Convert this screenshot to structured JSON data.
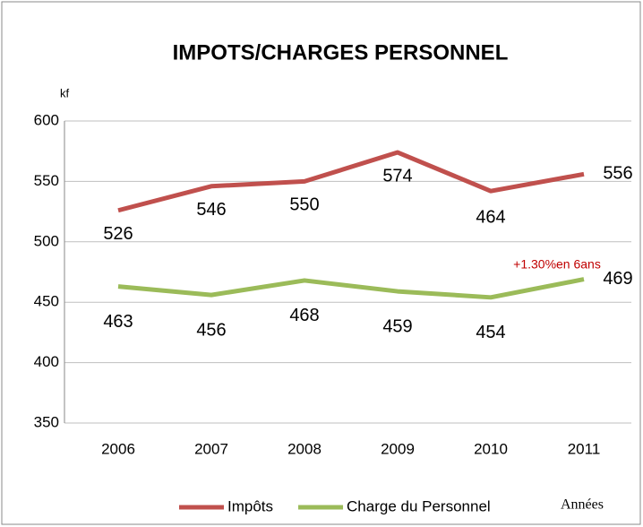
{
  "chart_data": {
    "type": "line",
    "title": "IMPOTS/CHARGES PERSONNEL",
    "y_label": "kf",
    "x_label": "Années",
    "categories": [
      "2006",
      "2007",
      "2008",
      "2009",
      "2010",
      "2011"
    ],
    "series": [
      {
        "name": "Impôts",
        "color": "#c0504d",
        "values": [
          526,
          546,
          550,
          574,
          542,
          556
        ]
      },
      {
        "name": "Charge du Personnel",
        "color": "#9bbb59",
        "values": [
          463,
          456,
          468,
          459,
          454,
          469
        ]
      }
    ],
    "ylim": [
      350,
      600
    ],
    "yticks": [
      350,
      400,
      450,
      500,
      550,
      600
    ],
    "grid": true,
    "annotations": [
      "464",
      "+1.30%en 6ans"
    ]
  }
}
